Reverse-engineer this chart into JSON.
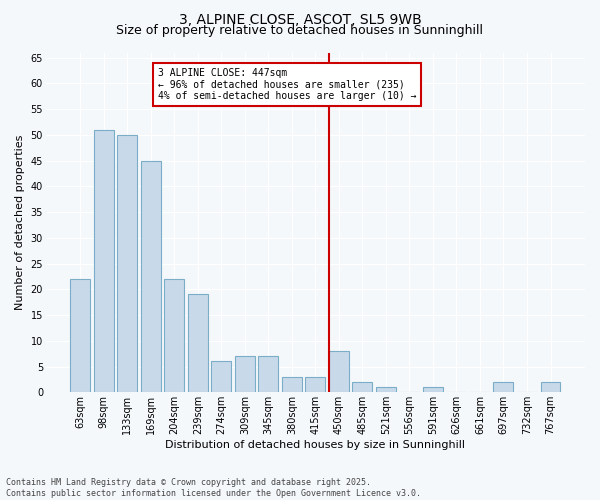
{
  "title1": "3, ALPINE CLOSE, ASCOT, SL5 9WB",
  "title2": "Size of property relative to detached houses in Sunninghill",
  "xlabel": "Distribution of detached houses by size in Sunninghill",
  "ylabel": "Number of detached properties",
  "categories": [
    "63sqm",
    "98sqm",
    "133sqm",
    "169sqm",
    "204sqm",
    "239sqm",
    "274sqm",
    "309sqm",
    "345sqm",
    "380sqm",
    "415sqm",
    "450sqm",
    "485sqm",
    "521sqm",
    "556sqm",
    "591sqm",
    "626sqm",
    "661sqm",
    "697sqm",
    "732sqm",
    "767sqm"
  ],
  "values": [
    22,
    51,
    50,
    45,
    22,
    19,
    6,
    7,
    7,
    3,
    3,
    8,
    2,
    1,
    0,
    1,
    0,
    0,
    2,
    0,
    2
  ],
  "bar_color": "#c8daea",
  "bar_edge_color": "#7aaec8",
  "vline_color": "#cc0000",
  "annotation_text": "3 ALPINE CLOSE: 447sqm\n← 96% of detached houses are smaller (235)\n4% of semi-detached houses are larger (10) →",
  "annotation_box_color": "#ffffff",
  "annotation_box_edge": "#cc0000",
  "ylim": [
    0,
    66
  ],
  "yticks": [
    0,
    5,
    10,
    15,
    20,
    25,
    30,
    35,
    40,
    45,
    50,
    55,
    60,
    65
  ],
  "footer": "Contains HM Land Registry data © Crown copyright and database right 2025.\nContains public sector information licensed under the Open Government Licence v3.0.",
  "bg_color": "#f5f8fb",
  "plot_bg_color": "#f5f8fb",
  "grid_color": "#ffffff",
  "title1_fontsize": 10,
  "title2_fontsize": 9,
  "axis_fontsize": 8,
  "tick_fontsize": 7,
  "footer_fontsize": 6
}
